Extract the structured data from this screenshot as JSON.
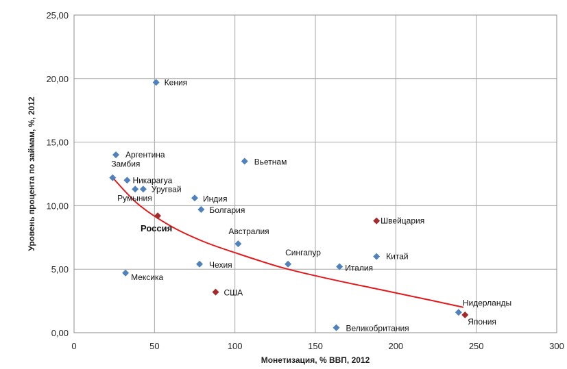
{
  "chart_data": {
    "type": "scatter",
    "xlabel": "Монетизация, % ВВП, 2012",
    "ylabel": "Уровень процента по займам, %, 2012",
    "xlim": [
      0,
      300
    ],
    "ylim": [
      0,
      25
    ],
    "xticks": [
      "0",
      "50",
      "100",
      "150",
      "200",
      "250",
      "300"
    ],
    "yticks": [
      "0,00",
      "5,00",
      "10,00",
      "15,00",
      "20,00",
      "25,00"
    ],
    "grid": true,
    "colors": {
      "normal": "#4f81bd",
      "highlight": "#a52a2a",
      "trend": "#e31a1c",
      "russia_label": "#c0392b"
    },
    "points": [
      {
        "label": "Кения",
        "x": 51,
        "y": 19.7,
        "highlight": false
      },
      {
        "label": "Аргентина",
        "x": 26,
        "y": 14.0,
        "highlight": false
      },
      {
        "label": "Вьетнам",
        "x": 106,
        "y": 13.5,
        "highlight": false
      },
      {
        "label": "Замбия",
        "x": 24,
        "y": 12.2,
        "highlight": false
      },
      {
        "label": "Никарагуа",
        "x": 33,
        "y": 12.0,
        "highlight": false
      },
      {
        "label": "Уругвай",
        "x": 43,
        "y": 11.3,
        "highlight": false
      },
      {
        "label": "Румыния",
        "x": 38,
        "y": 11.3,
        "highlight": false
      },
      {
        "label": "Индия",
        "x": 75,
        "y": 10.6,
        "highlight": false
      },
      {
        "label": "Болгария",
        "x": 79,
        "y": 9.7,
        "highlight": false
      },
      {
        "label": "Россия",
        "x": 52,
        "y": 9.2,
        "highlight": true
      },
      {
        "label": "Швейцария",
        "x": 188,
        "y": 8.8,
        "highlight": true
      },
      {
        "label": "Австралия",
        "x": 102,
        "y": 7.0,
        "highlight": false
      },
      {
        "label": "Китай",
        "x": 188,
        "y": 6.0,
        "highlight": false
      },
      {
        "label": "Сингапур",
        "x": 133,
        "y": 5.4,
        "highlight": false
      },
      {
        "label": "Чехия",
        "x": 78,
        "y": 5.4,
        "highlight": false
      },
      {
        "label": "Италия",
        "x": 165,
        "y": 5.2,
        "highlight": false
      },
      {
        "label": "Мексика",
        "x": 32,
        "y": 4.7,
        "highlight": false
      },
      {
        "label": "США",
        "x": 88,
        "y": 3.2,
        "highlight": true
      },
      {
        "label": "Нидерланды",
        "x": 239,
        "y": 1.6,
        "highlight": false
      },
      {
        "label": "Япония",
        "x": 243,
        "y": 1.4,
        "highlight": true
      },
      {
        "label": "Великобритания",
        "x": 163,
        "y": 0.4,
        "highlight": false
      }
    ],
    "trendline": {
      "type": "power",
      "points": [
        [
          24,
          12.2
        ],
        [
          40,
          10.1
        ],
        [
          60,
          8.4
        ],
        [
          80,
          7.2
        ],
        [
          100,
          6.3
        ],
        [
          130,
          5.1
        ],
        [
          160,
          4.2
        ],
        [
          190,
          3.4
        ],
        [
          220,
          2.6
        ],
        [
          242,
          2.0
        ]
      ]
    }
  }
}
